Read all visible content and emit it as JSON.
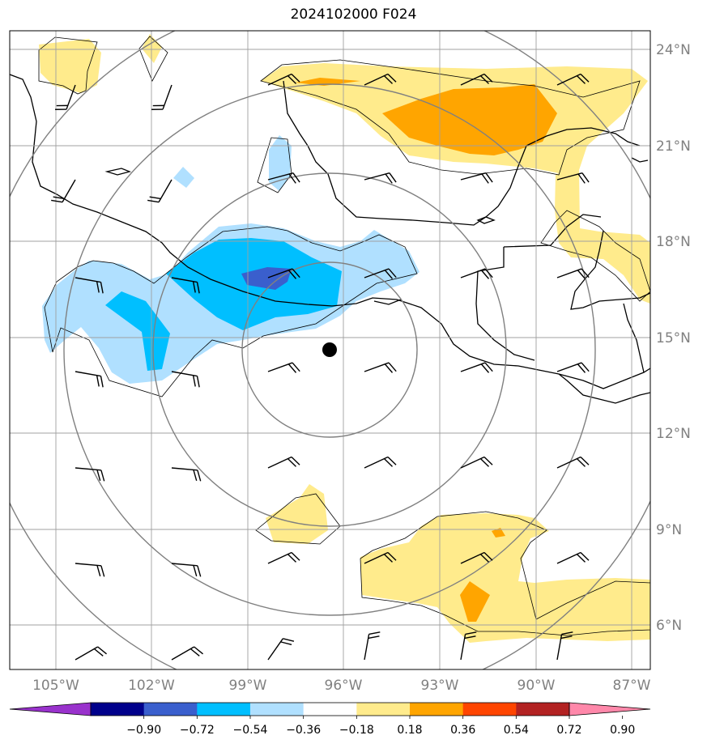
{
  "title": "2024102000 F024",
  "colors": {
    "frame": "#000000",
    "grid": "#a0a0a0",
    "range_ring": "#808080",
    "coast": "#000000",
    "contour": "#000000",
    "center_marker": "#000000",
    "barb": "#000000"
  },
  "map": {
    "lon_range": [
      -106,
      -86.6
    ],
    "lat_range": [
      4.9,
      24.6
    ],
    "lat_labels": [
      "6°N",
      "9°N",
      "12°N",
      "15°N",
      "18°N",
      "21°N",
      "24°N"
    ],
    "lon_labels": [
      "105°W",
      "102°W",
      "99°W",
      "96°W",
      "93°W",
      "90°W",
      "87°W"
    ],
    "center_marker": {
      "lon": -96.5,
      "lat": 14.6
    },
    "range_rings": "4 concentric range rings centered on the marker"
  },
  "colorbar": {
    "colors": [
      "#9932cc",
      "#00008b",
      "#3a5fcd",
      "#00bfff",
      "#b0e0ff",
      "#ffffff",
      "#ffeb8c",
      "#ffa500",
      "#ff4500",
      "#b22222",
      "#ff88aa"
    ],
    "labels": [
      "−0.90",
      "−0.72",
      "−0.54",
      "−0.36",
      "−0.18",
      "0.18",
      "0.36",
      "0.54",
      "0.72",
      "0.90"
    ]
  }
}
